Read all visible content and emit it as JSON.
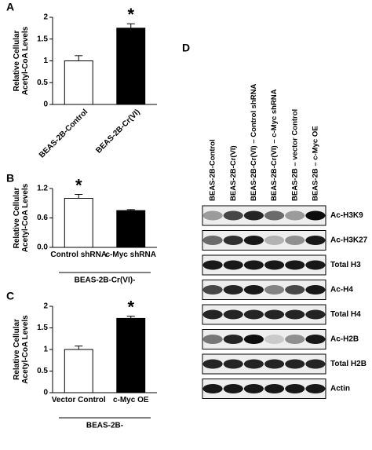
{
  "chart_data": [
    {
      "type": "bar",
      "panel_label": "A",
      "ylabel": "Relative Cellular Acetyl-CoA Levels",
      "categories": [
        "BEAS-2B-Control",
        "BEAS-2B-Cr(VI)"
      ],
      "values": [
        1.0,
        1.75
      ],
      "errors": [
        0.12,
        0.1
      ],
      "colors": [
        "#ffffff",
        "#000000"
      ],
      "annotation": "*",
      "ylim": [
        0,
        2
      ],
      "yticks": [
        0,
        0.5,
        1,
        1.5,
        2
      ]
    },
    {
      "type": "bar",
      "panel_label": "B",
      "ylabel": "Relative Cellular Acetyl-CoA Levels",
      "categories": [
        "Control shRNA",
        "c-Myc shRNA"
      ],
      "values": [
        1.0,
        0.75
      ],
      "errors": [
        0.08,
        0.02
      ],
      "colors": [
        "#ffffff",
        "#000000"
      ],
      "annotation": "*",
      "group_label": "BEAS-2B-Cr(VI)-",
      "ylim": [
        0,
        1.2
      ],
      "yticks": [
        {
          "value": 0,
          "label": "0.0"
        },
        0.6,
        1.2
      ]
    },
    {
      "type": "bar",
      "panel_label": "C",
      "ylabel": "Relative Cellular Acetyl-CoA Levels",
      "categories": [
        "Vector Control",
        "c-Myc OE"
      ],
      "values": [
        1.0,
        1.72
      ],
      "errors": [
        0.08,
        0.05
      ],
      "colors": [
        "#ffffff",
        "#000000"
      ],
      "annotation": "*",
      "group_label": "BEAS-2B-",
      "ylim": [
        0,
        2
      ],
      "yticks": [
        0,
        0.5,
        1,
        1.5,
        2
      ]
    }
  ],
  "blot": {
    "panel_label": "D",
    "lanes": [
      "BEAS-2B-Control",
      "BEAS-2B-Cr(VI)",
      "BEAS-2B-Cr(VI) – Control shRNA",
      "BEAS-2B-Cr(VI) – c-Myc shRNA",
      "BEAS-2B – vector Control",
      "BEAS-2B – c-Myc OE"
    ],
    "rows": [
      "Ac-H3K9",
      "Ac-H3K27",
      "Total H3",
      "Ac-H4",
      "Total H4",
      "Ac-H2B",
      "Total H2B",
      "Actin"
    ]
  }
}
